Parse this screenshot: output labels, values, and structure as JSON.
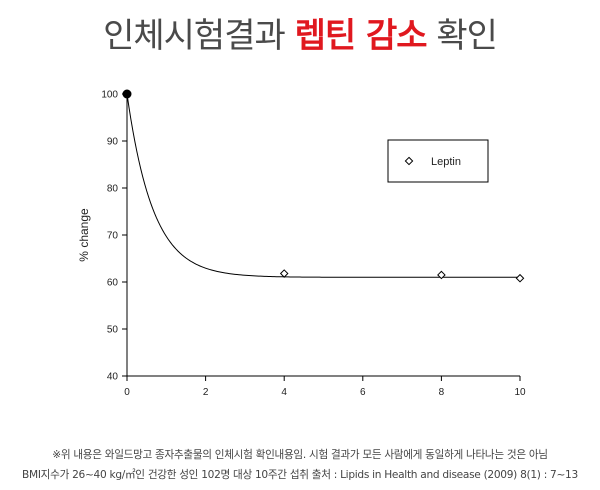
{
  "header": {
    "title_part1": "인체시험결과 ",
    "title_highlight": "렙틴 감소",
    "title_part2": " 확인",
    "highlight_color": "#e0181f"
  },
  "chart_data": {
    "type": "line",
    "ylabel": "% change",
    "xlabel": "",
    "xlim": [
      0,
      10
    ],
    "ylim": [
      40,
      100
    ],
    "x_ticks": [
      0,
      2,
      4,
      6,
      8,
      10
    ],
    "y_ticks": [
      40,
      50,
      60,
      70,
      80,
      90,
      100
    ],
    "legend_placement": "top-right",
    "grid": false,
    "series": [
      {
        "name": "Leptin",
        "marker": "diamond",
        "x": [
          0,
          4,
          8,
          10
        ],
        "y": [
          100,
          61.8,
          61.5,
          60.8
        ]
      }
    ],
    "fit_curve": {
      "form": "exponential decay",
      "plateau": 61.0,
      "start": 100,
      "rate": 1.5
    }
  },
  "footnote": {
    "line1": "※위 내용은 와일드망고 종자추출물의 인체시험 확인내용임. 시험 결과가 모든 사람에게 동일하게 나타나는 것은 아님",
    "line2": "BMI지수가 26~40 kg/㎡인 건강한 성인 102명 대상 10주간 섭취  출처 : Lipids in Health and disease (2009) 8(1) : 7~13"
  }
}
